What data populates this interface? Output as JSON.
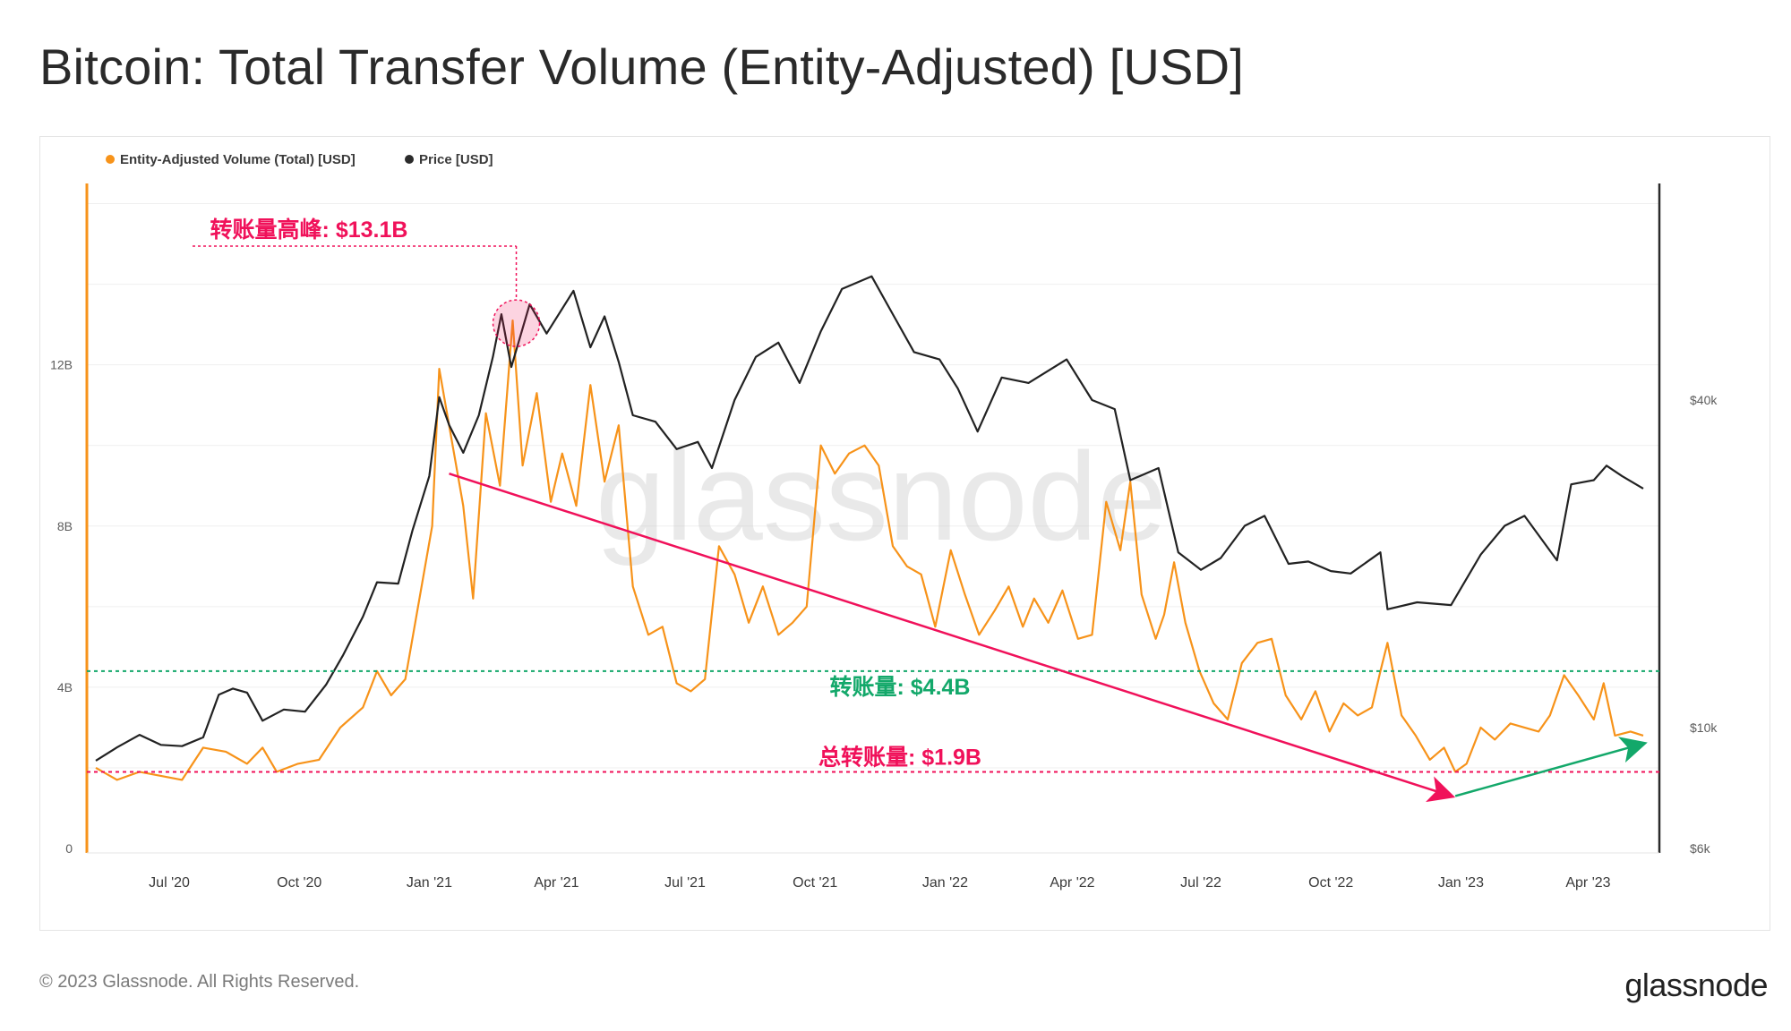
{
  "title": "Bitcoin: Total Transfer Volume (Entity-Adjusted) [USD]",
  "footer": {
    "copyright": "© 2023 Glassnode. All Rights Reserved.",
    "logo": "glassnode"
  },
  "watermark": "glassnode",
  "colors": {
    "volume": "#f7931a",
    "price": "#222222",
    "annotation_pink": "#f0115a",
    "annotation_green": "#13a86a"
  },
  "chart_data": {
    "type": "line",
    "legend": [
      {
        "label": "Entity-Adjusted Volume (Total) [USD]",
        "color": "#f7931a"
      },
      {
        "label": "Price [USD]",
        "color": "#2b2b2b"
      }
    ],
    "legend_position": "top-left",
    "x_ticks": [
      "Jul '20",
      "Oct '20",
      "Jan '21",
      "Apr '21",
      "Jul '21",
      "Oct '21",
      "Jan '22",
      "Apr '22",
      "Jul '22",
      "Oct '22",
      "Jan '23",
      "Apr '23"
    ],
    "y_left": {
      "ticks": [
        "0",
        "4B",
        "8B",
        "12B"
      ],
      "range": [
        0,
        16.5
      ]
    },
    "y_right": {
      "ticks": [
        "$6k",
        "$10k",
        "$40k"
      ],
      "scale": "log",
      "range": [
        6000,
        100000
      ]
    },
    "series": [
      {
        "name": "Entity-Adjusted Volume (Total) [USD]",
        "axis": "left",
        "unit": "billion USD",
        "points": [
          [
            "2020-05-10",
            2.0
          ],
          [
            "2020-05-25",
            1.7
          ],
          [
            "2020-06-10",
            1.9
          ],
          [
            "2020-06-25",
            1.8
          ],
          [
            "2020-07-10",
            1.7
          ],
          [
            "2020-07-25",
            2.5
          ],
          [
            "2020-08-10",
            2.4
          ],
          [
            "2020-08-25",
            2.1
          ],
          [
            "2020-09-05",
            2.5
          ],
          [
            "2020-09-15",
            1.9
          ],
          [
            "2020-09-30",
            2.1
          ],
          [
            "2020-10-15",
            2.2
          ],
          [
            "2020-10-30",
            3.0
          ],
          [
            "2020-11-15",
            3.5
          ],
          [
            "2020-11-25",
            4.4
          ],
          [
            "2020-12-05",
            3.8
          ],
          [
            "2020-12-15",
            4.2
          ],
          [
            "2020-12-25",
            6.2
          ],
          [
            "2021-01-03",
            8.0
          ],
          [
            "2021-01-08",
            11.9
          ],
          [
            "2021-01-15",
            10.5
          ],
          [
            "2021-01-25",
            8.5
          ],
          [
            "2021-02-01",
            6.2
          ],
          [
            "2021-02-10",
            10.8
          ],
          [
            "2021-02-20",
            9.0
          ],
          [
            "2021-03-01",
            13.1
          ],
          [
            "2021-03-08",
            9.5
          ],
          [
            "2021-03-18",
            11.3
          ],
          [
            "2021-03-28",
            8.6
          ],
          [
            "2021-04-05",
            9.8
          ],
          [
            "2021-04-15",
            8.5
          ],
          [
            "2021-04-25",
            11.5
          ],
          [
            "2021-05-05",
            9.1
          ],
          [
            "2021-05-15",
            10.5
          ],
          [
            "2021-05-25",
            6.5
          ],
          [
            "2021-06-05",
            5.3
          ],
          [
            "2021-06-15",
            5.5
          ],
          [
            "2021-06-25",
            4.1
          ],
          [
            "2021-07-05",
            3.9
          ],
          [
            "2021-07-15",
            4.2
          ],
          [
            "2021-07-25",
            7.5
          ],
          [
            "2021-08-05",
            6.8
          ],
          [
            "2021-08-15",
            5.6
          ],
          [
            "2021-08-25",
            6.5
          ],
          [
            "2021-09-05",
            5.3
          ],
          [
            "2021-09-15",
            5.6
          ],
          [
            "2021-09-25",
            6.0
          ],
          [
            "2021-10-05",
            10.0
          ],
          [
            "2021-10-15",
            9.3
          ],
          [
            "2021-10-25",
            9.8
          ],
          [
            "2021-11-05",
            10.0
          ],
          [
            "2021-11-15",
            9.5
          ],
          [
            "2021-11-25",
            7.5
          ],
          [
            "2021-12-05",
            7.0
          ],
          [
            "2021-12-15",
            6.8
          ],
          [
            "2021-12-25",
            5.5
          ],
          [
            "2022-01-05",
            7.4
          ],
          [
            "2022-01-15",
            6.3
          ],
          [
            "2022-01-25",
            5.3
          ],
          [
            "2022-02-05",
            5.9
          ],
          [
            "2022-02-15",
            6.5
          ],
          [
            "2022-02-25",
            5.5
          ],
          [
            "2022-03-05",
            6.2
          ],
          [
            "2022-03-15",
            5.6
          ],
          [
            "2022-03-25",
            6.4
          ],
          [
            "2022-04-05",
            5.2
          ],
          [
            "2022-04-15",
            5.3
          ],
          [
            "2022-04-25",
            8.6
          ],
          [
            "2022-05-05",
            7.4
          ],
          [
            "2022-05-12",
            9.1
          ],
          [
            "2022-05-20",
            6.3
          ],
          [
            "2022-05-30",
            5.2
          ],
          [
            "2022-06-05",
            5.8
          ],
          [
            "2022-06-12",
            7.1
          ],
          [
            "2022-06-20",
            5.6
          ],
          [
            "2022-06-30",
            4.4
          ],
          [
            "2022-07-10",
            3.6
          ],
          [
            "2022-07-20",
            3.2
          ],
          [
            "2022-07-30",
            4.6
          ],
          [
            "2022-08-10",
            5.1
          ],
          [
            "2022-08-20",
            5.2
          ],
          [
            "2022-08-30",
            3.8
          ],
          [
            "2022-09-10",
            3.2
          ],
          [
            "2022-09-20",
            3.9
          ],
          [
            "2022-09-30",
            2.9
          ],
          [
            "2022-10-10",
            3.6
          ],
          [
            "2022-10-20",
            3.3
          ],
          [
            "2022-10-30",
            3.5
          ],
          [
            "2022-11-05",
            4.4
          ],
          [
            "2022-11-10",
            5.1
          ],
          [
            "2022-11-20",
            3.3
          ],
          [
            "2022-11-30",
            2.8
          ],
          [
            "2022-12-10",
            2.2
          ],
          [
            "2022-12-20",
            2.5
          ],
          [
            "2022-12-28",
            1.9
          ],
          [
            "2023-01-05",
            2.1
          ],
          [
            "2023-01-15",
            3.0
          ],
          [
            "2023-01-25",
            2.7
          ],
          [
            "2023-02-05",
            3.1
          ],
          [
            "2023-02-15",
            3.0
          ],
          [
            "2023-02-25",
            2.9
          ],
          [
            "2023-03-05",
            3.3
          ],
          [
            "2023-03-15",
            4.3
          ],
          [
            "2023-03-25",
            3.8
          ],
          [
            "2023-04-05",
            3.2
          ],
          [
            "2023-04-12",
            4.1
          ],
          [
            "2023-04-20",
            2.8
          ],
          [
            "2023-05-01",
            2.9
          ],
          [
            "2023-05-10",
            2.8
          ]
        ]
      },
      {
        "name": "Price [USD]",
        "axis": "right",
        "unit": "USD",
        "points": [
          [
            "2020-05-10",
            8700
          ],
          [
            "2020-05-25",
            9200
          ],
          [
            "2020-06-10",
            9700
          ],
          [
            "2020-06-25",
            9300
          ],
          [
            "2020-07-10",
            9250
          ],
          [
            "2020-07-25",
            9600
          ],
          [
            "2020-08-05",
            11500
          ],
          [
            "2020-08-15",
            11800
          ],
          [
            "2020-08-25",
            11600
          ],
          [
            "2020-09-05",
            10300
          ],
          [
            "2020-09-20",
            10800
          ],
          [
            "2020-10-05",
            10700
          ],
          [
            "2020-10-20",
            12000
          ],
          [
            "2020-11-01",
            13600
          ],
          [
            "2020-11-15",
            16000
          ],
          [
            "2020-11-25",
            18500
          ],
          [
            "2020-12-10",
            18400
          ],
          [
            "2020-12-20",
            23000
          ],
          [
            "2021-01-01",
            29000
          ],
          [
            "2021-01-08",
            40500
          ],
          [
            "2021-01-15",
            36000
          ],
          [
            "2021-01-25",
            32000
          ],
          [
            "2021-02-05",
            37500
          ],
          [
            "2021-02-15",
            48000
          ],
          [
            "2021-02-21",
            57500
          ],
          [
            "2021-02-28",
            46000
          ],
          [
            "2021-03-13",
            60000
          ],
          [
            "2021-03-25",
            53000
          ],
          [
            "2021-04-13",
            63500
          ],
          [
            "2021-04-25",
            50000
          ],
          [
            "2021-05-05",
            57000
          ],
          [
            "2021-05-15",
            47000
          ],
          [
            "2021-05-25",
            37500
          ],
          [
            "2021-06-10",
            36500
          ],
          [
            "2021-06-25",
            32500
          ],
          [
            "2021-07-10",
            33500
          ],
          [
            "2021-07-20",
            30000
          ],
          [
            "2021-08-05",
            40000
          ],
          [
            "2021-08-20",
            48000
          ],
          [
            "2021-09-05",
            51000
          ],
          [
            "2021-09-20",
            43000
          ],
          [
            "2021-10-05",
            53500
          ],
          [
            "2021-10-20",
            64000
          ],
          [
            "2021-11-10",
            67500
          ],
          [
            "2021-11-25",
            57500
          ],
          [
            "2021-12-10",
            49000
          ],
          [
            "2021-12-28",
            47500
          ],
          [
            "2022-01-10",
            42000
          ],
          [
            "2022-01-24",
            35000
          ],
          [
            "2022-02-10",
            44000
          ],
          [
            "2022-03-01",
            43000
          ],
          [
            "2022-03-28",
            47500
          ],
          [
            "2022-04-15",
            40000
          ],
          [
            "2022-05-01",
            38500
          ],
          [
            "2022-05-12",
            28500
          ],
          [
            "2022-06-01",
            30000
          ],
          [
            "2022-06-15",
            21000
          ],
          [
            "2022-07-01",
            19500
          ],
          [
            "2022-07-15",
            20500
          ],
          [
            "2022-08-01",
            23500
          ],
          [
            "2022-08-15",
            24500
          ],
          [
            "2022-09-01",
            20000
          ],
          [
            "2022-09-15",
            20200
          ],
          [
            "2022-10-01",
            19400
          ],
          [
            "2022-10-15",
            19200
          ],
          [
            "2022-11-05",
            21000
          ],
          [
            "2022-11-10",
            16500
          ],
          [
            "2022-12-01",
            17000
          ],
          [
            "2022-12-25",
            16800
          ],
          [
            "2023-01-15",
            20800
          ],
          [
            "2023-02-01",
            23500
          ],
          [
            "2023-02-15",
            24500
          ],
          [
            "2023-03-10",
            20300
          ],
          [
            "2023-03-20",
            28000
          ],
          [
            "2023-04-05",
            28500
          ],
          [
            "2023-04-14",
            30300
          ],
          [
            "2023-04-25",
            29000
          ],
          [
            "2023-05-10",
            27500
          ]
        ]
      }
    ],
    "annotations": [
      {
        "id": "peak",
        "text": "转账量高峰: $13.1B",
        "value": 13.1,
        "color": "#f0115a"
      },
      {
        "id": "line44",
        "text": "转账量: $4.4B",
        "value": 4.4,
        "color": "#13a86a"
      },
      {
        "id": "line19",
        "text": "总转账量: $1.9B",
        "value": 1.9,
        "color": "#f0115a"
      }
    ],
    "trend_arrows": [
      {
        "from": [
          "2021-01-15",
          9.3
        ],
        "to": [
          "2022-12-25",
          1.3
        ],
        "color": "#f0115a"
      },
      {
        "from": [
          "2022-12-28",
          1.3
        ],
        "to": [
          "2023-05-10",
          2.6
        ],
        "color": "#13a86a"
      }
    ]
  }
}
